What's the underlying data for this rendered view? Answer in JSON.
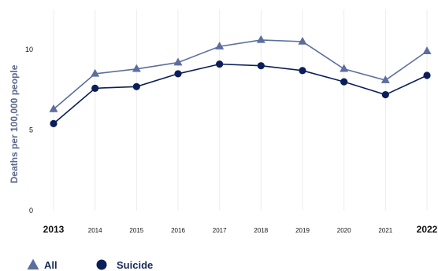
{
  "chart_data": {
    "type": "line",
    "title": "",
    "xlabel": "",
    "ylabel": "Deaths per 100,000 people",
    "x": [
      "2013",
      "2014",
      "2015",
      "2016",
      "2017",
      "2018",
      "2019",
      "2020",
      "2021",
      "2022"
    ],
    "y_ticks": [
      "0",
      "5",
      "10"
    ],
    "ylim": [
      0,
      12.5
    ],
    "grid": "vertical",
    "legend_position": "bottom-left",
    "series": [
      {
        "name": "All",
        "marker": "triangle",
        "color": "#5b6e9e",
        "values": [
          6.3,
          8.5,
          8.8,
          9.2,
          10.2,
          10.6,
          10.5,
          8.8,
          8.1,
          9.9
        ]
      },
      {
        "name": "Suicide",
        "marker": "circle",
        "color": "#0b1e5a",
        "values": [
          5.4,
          7.6,
          7.7,
          8.5,
          9.1,
          9.0,
          8.7,
          8.0,
          7.2,
          8.4
        ]
      }
    ]
  }
}
